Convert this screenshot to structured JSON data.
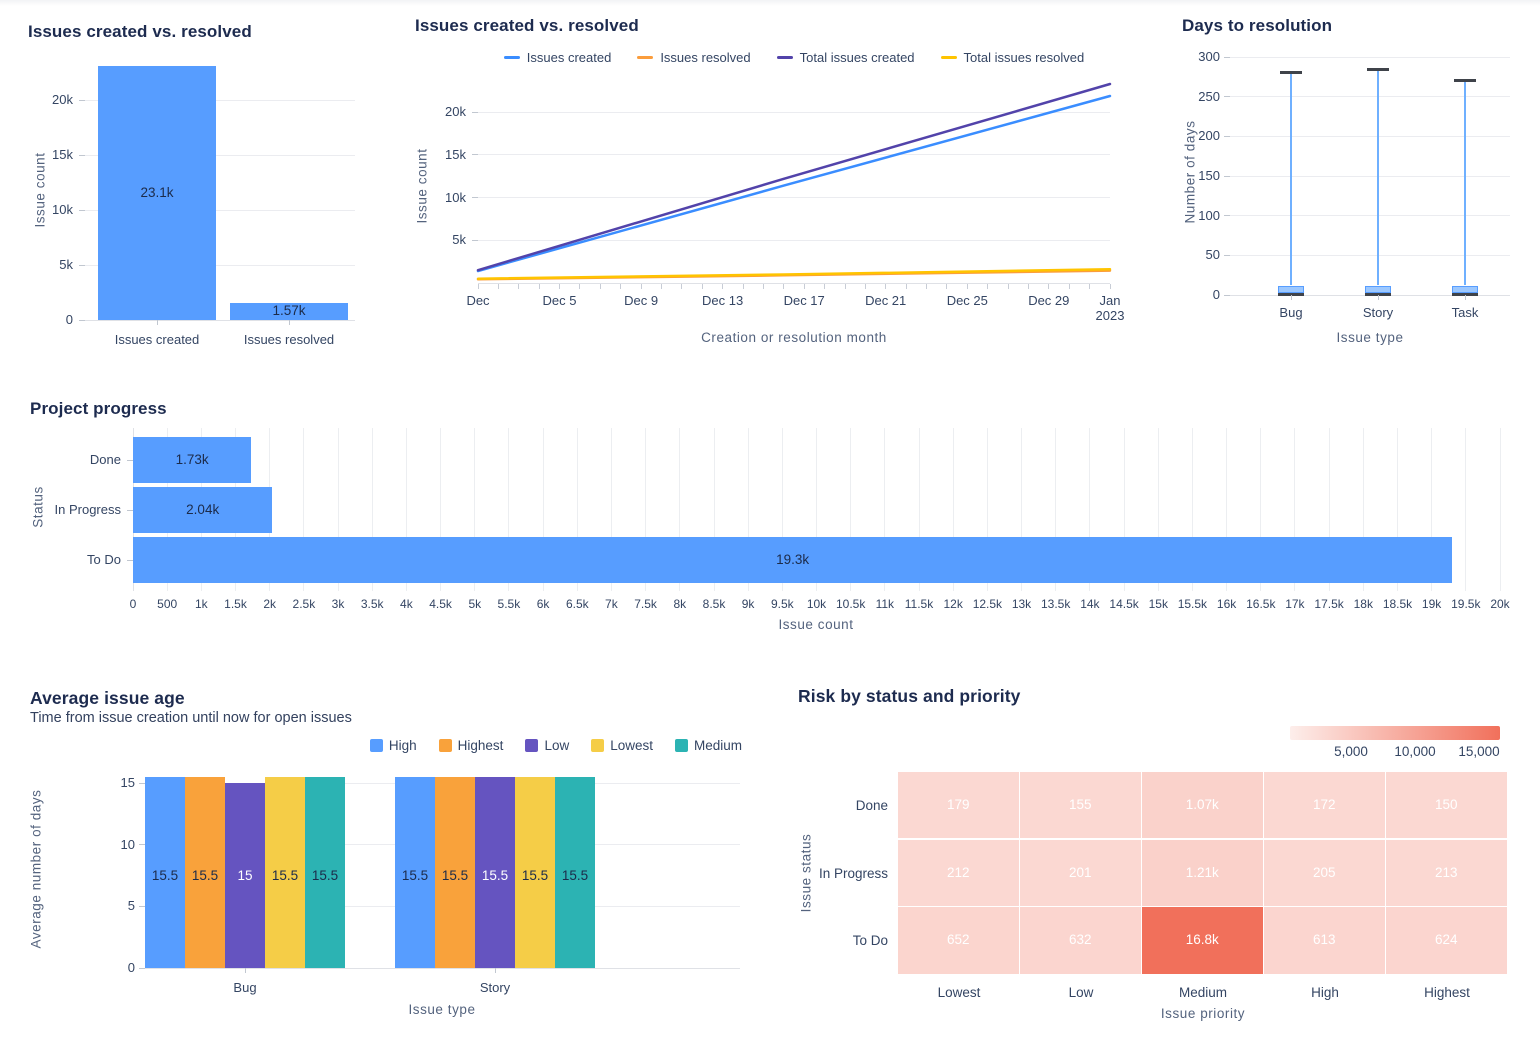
{
  "chart_data": [
    {
      "type": "bar",
      "title": "Issues created vs. resolved",
      "ylabel": "Issue count",
      "categories": [
        "Issues created",
        "Issues resolved"
      ],
      "values": [
        23100,
        1570
      ],
      "value_labels": [
        "23.1k",
        "1.57k"
      ],
      "yticks": [
        0,
        5000,
        10000,
        15000,
        20000
      ],
      "ytick_labels": [
        "0",
        "5k",
        "10k",
        "15k",
        "20k"
      ],
      "ylim": [
        0,
        23600
      ],
      "bar_color": "#579DFF"
    },
    {
      "type": "line",
      "title": "Issues created vs. resolved",
      "xlabel": "Creation or resolution month",
      "ylabel": "Issue count",
      "yticks": [
        5000,
        10000,
        15000,
        20000
      ],
      "ytick_labels": [
        "5k",
        "10k",
        "15k",
        "20k"
      ],
      "ylim": [
        0,
        23500
      ],
      "x_range_days": 31,
      "x_ticks": [
        {
          "day": 0,
          "label": "Dec"
        },
        {
          "day": 4,
          "label": "Dec 5"
        },
        {
          "day": 8,
          "label": "Dec 9"
        },
        {
          "day": 12,
          "label": "Dec 13"
        },
        {
          "day": 16,
          "label": "Dec 17"
        },
        {
          "day": 20,
          "label": "Dec 21"
        },
        {
          "day": 24,
          "label": "Dec 25"
        },
        {
          "day": 28,
          "label": "Dec 29"
        },
        {
          "day": 31,
          "label": "Jan\n2023"
        }
      ],
      "legend": [
        {
          "label": "Issues created",
          "color": "#3A8DFF"
        },
        {
          "label": "Issues resolved",
          "color": "#FB9D3C"
        },
        {
          "label": "Total issues created",
          "color": "#5243AA"
        },
        {
          "label": "Total issues resolved",
          "color": "#FFC400"
        }
      ],
      "series": [
        {
          "name": "Issues resolved",
          "color": "#FB9D3C",
          "points": [
            [
              0,
              430
            ],
            [
              15,
              900
            ],
            [
              31,
              1450
            ]
          ]
        },
        {
          "name": "Total issues resolved",
          "color": "#FFC400",
          "points": [
            [
              0,
              500
            ],
            [
              15,
              1000
            ],
            [
              31,
              1600
            ]
          ]
        },
        {
          "name": "Issues created",
          "color": "#3A8DFF",
          "points": [
            [
              0,
              1400
            ],
            [
              15,
              11400
            ],
            [
              31,
              21900
            ]
          ]
        },
        {
          "name": "Total issues created",
          "color": "#5243AA",
          "points": [
            [
              0,
              1500
            ],
            [
              15,
              12200
            ],
            [
              31,
              23300
            ]
          ]
        }
      ]
    },
    {
      "type": "candlestick",
      "title": "Days to resolution",
      "xlabel": "Issue type",
      "ylabel": "Number of days",
      "yticks": [
        0,
        50,
        100,
        150,
        200,
        250,
        300
      ],
      "ytick_labels": [
        "0",
        "50",
        "100",
        "150",
        "200",
        "250",
        "300"
      ],
      "ylim": [
        0,
        310
      ],
      "categories": [
        "Bug",
        "Story",
        "Task"
      ],
      "items": [
        {
          "category": "Bug",
          "high": 281,
          "box_top": 12,
          "box_bottom": 2,
          "low": 1
        },
        {
          "category": "Story",
          "high": 284,
          "box_top": 12,
          "box_bottom": 2,
          "low": 1
        },
        {
          "category": "Task",
          "high": 270,
          "box_top": 12,
          "box_bottom": 2,
          "low": 1
        }
      ],
      "colors": {
        "line": "#6FB0FF",
        "box_fill": "#9CC8FF",
        "box_border": "#579DFF",
        "cap": "#3F434A"
      }
    },
    {
      "type": "bar-horizontal",
      "title": "Project progress",
      "xlabel": "Issue count",
      "ylabel": "Status",
      "categories": [
        "Done",
        "In Progress",
        "To Do"
      ],
      "values": [
        1730,
        2040,
        19300
      ],
      "value_labels": [
        "1.73k",
        "2.04k",
        "19.3k"
      ],
      "xlim": [
        0,
        20000
      ],
      "xtick_step": 500,
      "xtick_labels": [
        "0",
        "500",
        "1k",
        "1.5k",
        "2k",
        "2.5k",
        "3k",
        "3.5k",
        "4k",
        "4.5k",
        "5k",
        "5.5k",
        "6k",
        "6.5k",
        "7k",
        "7.5k",
        "8k",
        "8.5k",
        "9k",
        "9.5k",
        "10k",
        "10.5k",
        "11k",
        "11.5k",
        "12k",
        "12.5k",
        "13k",
        "13.5k",
        "14k",
        "14.5k",
        "15k",
        "15.5k",
        "16k",
        "16.5k",
        "17k",
        "17.5k",
        "18k",
        "18.5k",
        "19k",
        "19.5k",
        "20k"
      ],
      "bar_color": "#579DFF"
    },
    {
      "type": "grouped-bar",
      "title": "Average issue age",
      "subtitle": "Time from issue creation until now for open issues",
      "xlabel": "Issue type",
      "ylabel": "Average number of days",
      "categories": [
        "Bug",
        "Story"
      ],
      "yticks": [
        0,
        5,
        10,
        15
      ],
      "ytick_labels": [
        "0",
        "5",
        "10",
        "15"
      ],
      "ylim": [
        0,
        16
      ],
      "series": [
        {
          "name": "High",
          "color": "#579DFF",
          "label_color": "#1C2B4A",
          "values": [
            15.5,
            15.5
          ],
          "value_labels": [
            "15.5",
            "15.5"
          ]
        },
        {
          "name": "Highest",
          "color": "#F9A23B",
          "label_color": "#1C2B4A",
          "values": [
            15.5,
            15.5
          ],
          "value_labels": [
            "15.5",
            "15.5"
          ]
        },
        {
          "name": "Low",
          "color": "#6554C0",
          "label_color": "#FFFFFF",
          "values": [
            15,
            15.5
          ],
          "value_labels": [
            "15",
            "15.5"
          ]
        },
        {
          "name": "Lowest",
          "color": "#F5CD47",
          "label_color": "#1C2B4A",
          "values": [
            15.5,
            15.5
          ],
          "value_labels": [
            "15.5",
            "15.5"
          ]
        },
        {
          "name": "Medium",
          "color": "#2CB3B3",
          "label_color": "#1C2B4A",
          "values": [
            15.5,
            15.5
          ],
          "value_labels": [
            "15.5",
            "15.5"
          ]
        }
      ]
    },
    {
      "type": "heatmap",
      "title": "Risk by status and priority",
      "xlabel": "Issue priority",
      "ylabel": "Issue status",
      "columns": [
        "Lowest",
        "Low",
        "Medium",
        "High",
        "Highest"
      ],
      "rows": [
        "Done",
        "In Progress",
        "To Do"
      ],
      "values": [
        [
          179,
          155,
          1070,
          172,
          150
        ],
        [
          212,
          201,
          1210,
          205,
          213
        ],
        [
          652,
          632,
          16800,
          613,
          624
        ]
      ],
      "value_labels": [
        [
          "179",
          "155",
          "1.07k",
          "172",
          "150"
        ],
        [
          "212",
          "201",
          "1.21k",
          "205",
          "213"
        ],
        [
          "652",
          "632",
          "16.8k",
          "613",
          "624"
        ]
      ],
      "color_scale": {
        "min_value": 150,
        "max_value": 16800,
        "min_color": "#FBD8D2",
        "max_color": "#F1705B",
        "bar_left_color": "#FDEEEB"
      },
      "colorbar_labels": [
        "5,000",
        "10,000",
        "15,000"
      ]
    }
  ]
}
